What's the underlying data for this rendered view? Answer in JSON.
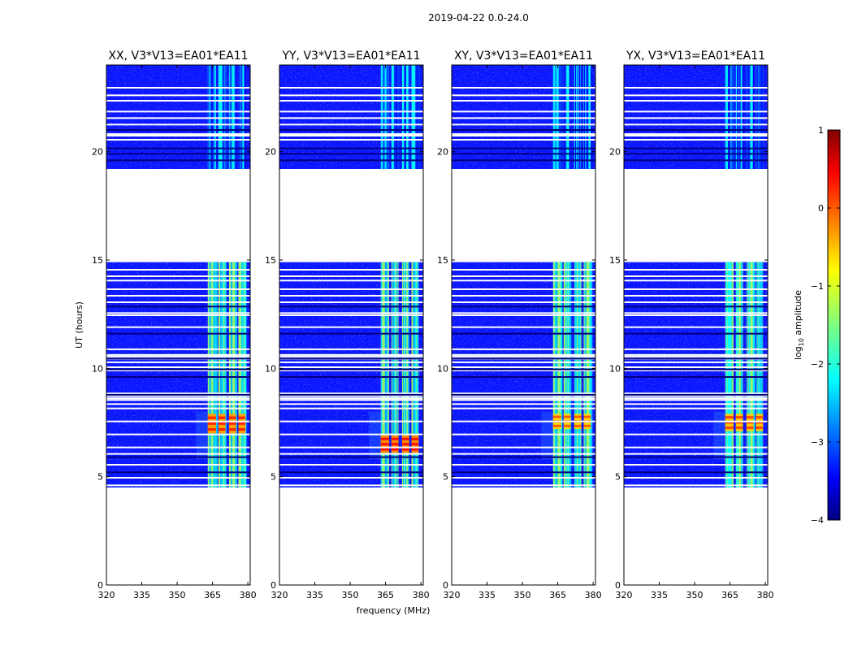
{
  "chart_data": {
    "type": "heatmap",
    "suptitle": "2019-04-22 0.0-24.0",
    "xlabel": "frequency (MHz)",
    "ylabel": "UT (hours)",
    "xlim": [
      320,
      381
    ],
    "ylim": [
      0,
      24
    ],
    "xticks": [
      "320",
      "335",
      "350",
      "365",
      "380"
    ],
    "yticks": [
      "0",
      "5",
      "10",
      "15",
      "20"
    ],
    "colorbar": {
      "label_prefix": "log",
      "label_sub": "10",
      "label_suffix": " amplitude",
      "range": [
        -4,
        1
      ],
      "ticks": [
        "1",
        "0",
        "−1",
        "−2",
        "−3",
        "−4"
      ],
      "colormap": "jet"
    },
    "data_coverage_hours": [
      [
        4.5,
        14.9
      ],
      [
        19.2,
        24.0
      ]
    ],
    "panels": [
      {
        "title": "XX, V3*V13=EA01*EA11",
        "peak_hours": [
          7.0,
          7.9
        ],
        "peak_level": -0.4
      },
      {
        "title": "YY, V3*V13=EA01*EA11",
        "peak_hours": [
          6.1,
          6.9
        ],
        "peak_level": -0.3
      },
      {
        "title": "XY, V3*V13=EA01*EA11",
        "peak_hours": [
          7.2,
          7.9
        ],
        "peak_level": -0.7
      },
      {
        "title": "YX, V3*V13=EA01*EA11",
        "peak_hours": [
          7.1,
          7.9
        ],
        "peak_level": -0.6
      }
    ]
  }
}
